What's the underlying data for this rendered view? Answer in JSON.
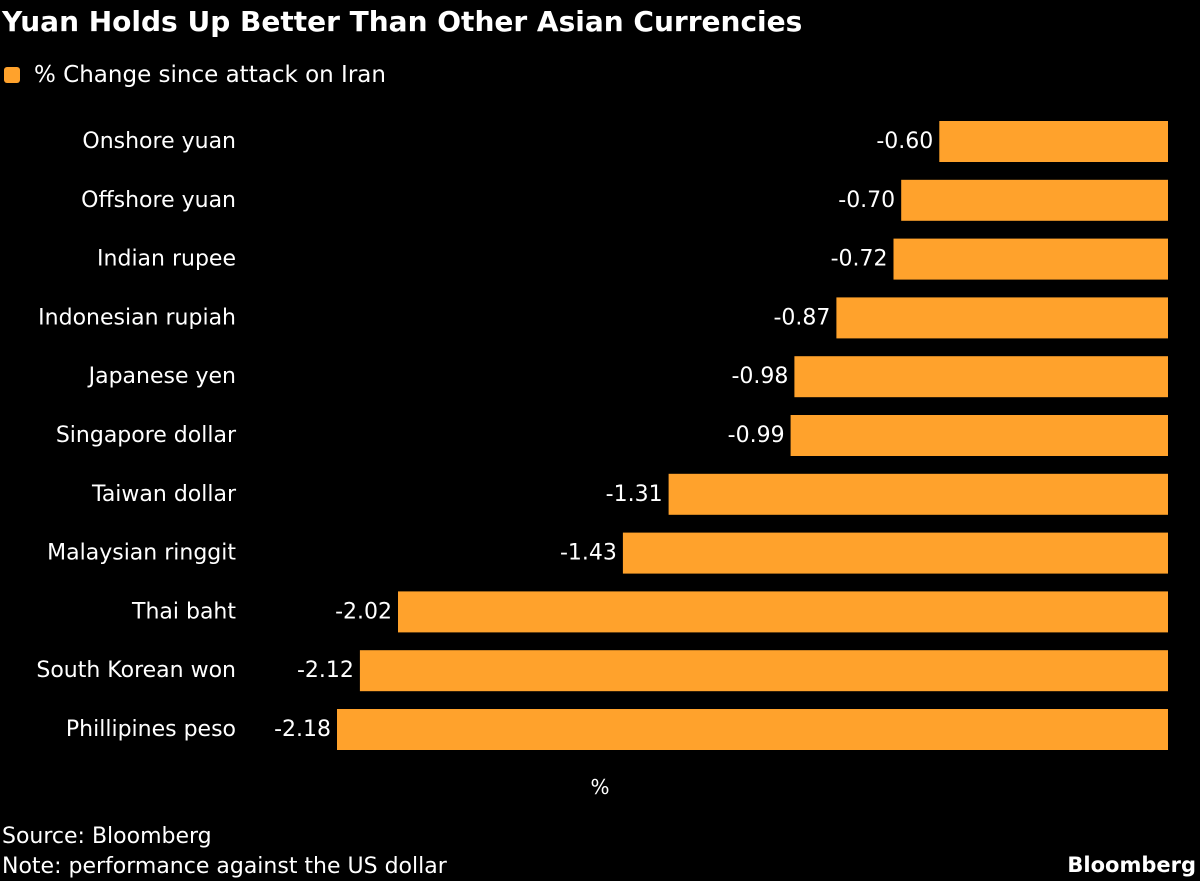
{
  "title": "Yuan Holds Up Better Than Other Asian Currencies",
  "source": "Source: Bloomberg",
  "note": "Note: performance against the US dollar",
  "brand": "Bloomberg",
  "colors": {
    "background": "#000000",
    "bar": "#ffa22c",
    "text": "#ffffff"
  },
  "chart_data": {
    "type": "bar",
    "orientation": "horizontal",
    "title": "Yuan Holds Up Better Than Other Asian Currencies",
    "xlabel": "%",
    "ylabel": "",
    "legend": [
      "% Change since attack on Iran"
    ],
    "legend_position": "top-left",
    "categories": [
      "Onshore yuan",
      "Offshore yuan",
      "Indian rupee",
      "Indonesian rupiah",
      "Japanese yen",
      "Singapore dollar",
      "Taiwan dollar",
      "Malaysian ringgit",
      "Thai baht",
      "South Korean won",
      "Phillipines peso"
    ],
    "values": [
      -0.6,
      -0.7,
      -0.72,
      -0.87,
      -0.98,
      -0.99,
      -1.31,
      -1.43,
      -2.02,
      -2.12,
      -2.18
    ],
    "value_labels": [
      "-0.60",
      "-0.70",
      "-0.72",
      "-0.87",
      "-0.98",
      "-0.99",
      "-1.31",
      "-1.43",
      "-2.02",
      "-2.12",
      "-2.18"
    ],
    "xlim": [
      -2.18,
      0
    ],
    "grid": false
  }
}
